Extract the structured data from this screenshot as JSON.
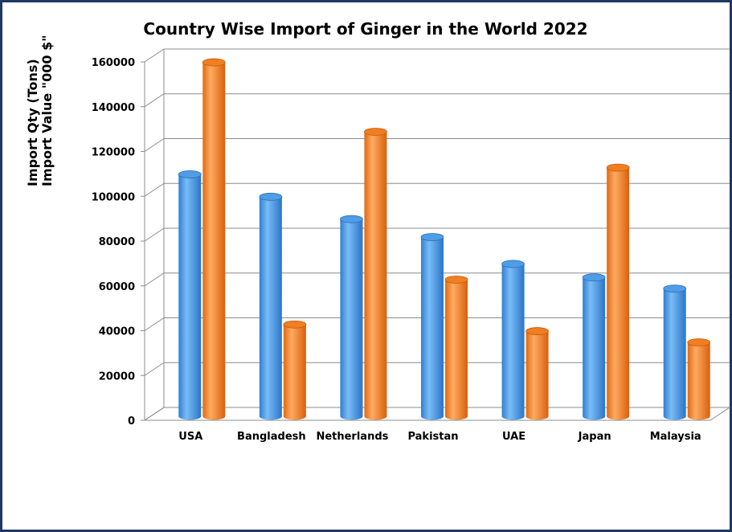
{
  "chart_data": {
    "type": "bar",
    "title": "Country Wise Import of Ginger  in the World 2022",
    "ylabel_lines": [
      "Import Qty (Tons)",
      "Import Value \"000 $\""
    ],
    "ylim": [
      0,
      160000
    ],
    "yticks": [
      "0",
      "20000",
      "40000",
      "60000",
      "80000",
      "100000",
      "120000",
      "140000",
      "160000"
    ],
    "categories": [
      "USA",
      "Bangladesh",
      "Netherlands",
      "Pakistan",
      "UAE",
      "Japan",
      "Malaysia"
    ],
    "series": [
      {
        "color": "#4a9eec",
        "values": [
          108000,
          98000,
          88000,
          80000,
          68000,
          62000,
          57000
        ]
      },
      {
        "color": "#f7892a",
        "values": [
          158000,
          41000,
          127000,
          61000,
          38000,
          111000,
          33000
        ]
      }
    ],
    "grid": true,
    "style": "3d-cylinder"
  }
}
